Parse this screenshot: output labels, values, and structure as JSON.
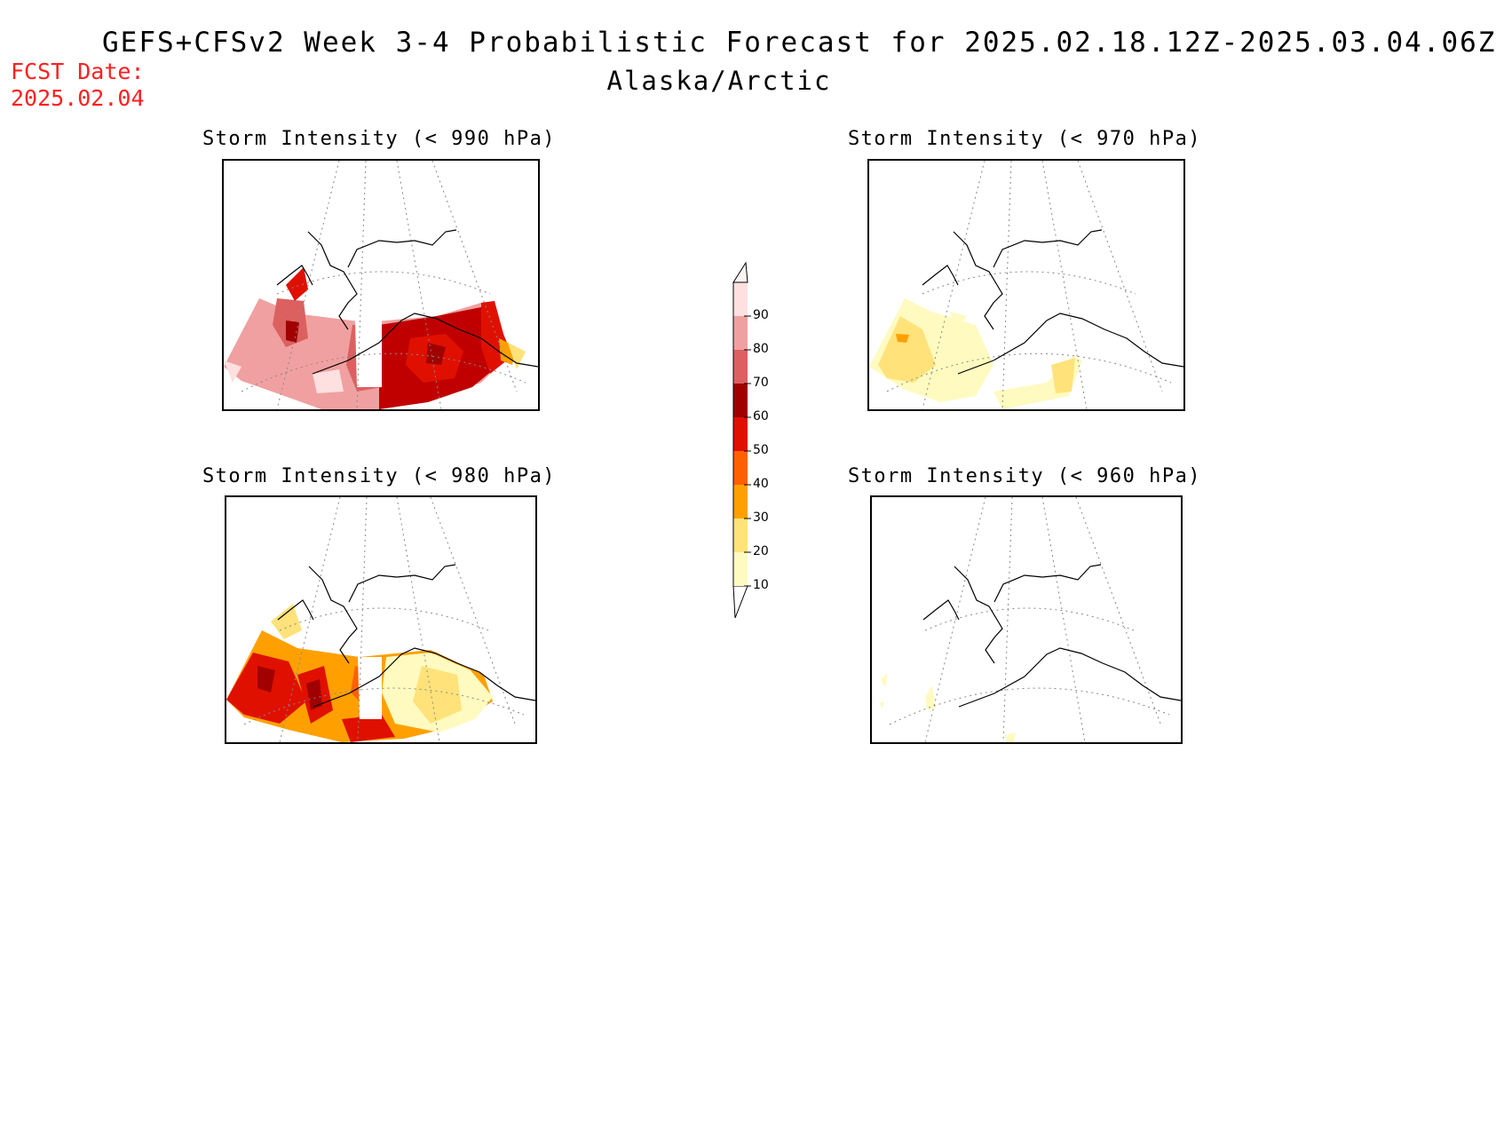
{
  "header": {
    "title": "GEFS+CFSv2 Week 3-4 Probabilistic Forecast for 2025.02.18.12Z-2025.03.04.06Z",
    "region": "Alaska/Arctic",
    "fcst_label": "FCST Date:",
    "fcst_date": "2025.02.04"
  },
  "panels": [
    {
      "title": "Storm Intensity (< 990 hPa)",
      "threshold_hPa": 990,
      "dominant_probability": "high (60-90%)"
    },
    {
      "title": "Storm Intensity (< 970 hPa)",
      "threshold_hPa": 970,
      "dominant_probability": "low (10-30%)"
    },
    {
      "title": "Storm Intensity (< 980 hPa)",
      "threshold_hPa": 980,
      "dominant_probability": "moderate (30-60%)"
    },
    {
      "title": "Storm Intensity (< 960 hPa)",
      "threshold_hPa": 960,
      "dominant_probability": "very low (10-20%)"
    }
  ],
  "colorbar": {
    "levels": [
      "10",
      "20",
      "30",
      "40",
      "50",
      "60",
      "70",
      "80",
      "90"
    ],
    "colors": [
      "#fffac0",
      "#ffe27a",
      "#ffa000",
      "#ff6000",
      "#e01000",
      "#a00000",
      "#dc6060",
      "#f0a0a0",
      "#ffe0e0"
    ]
  }
}
